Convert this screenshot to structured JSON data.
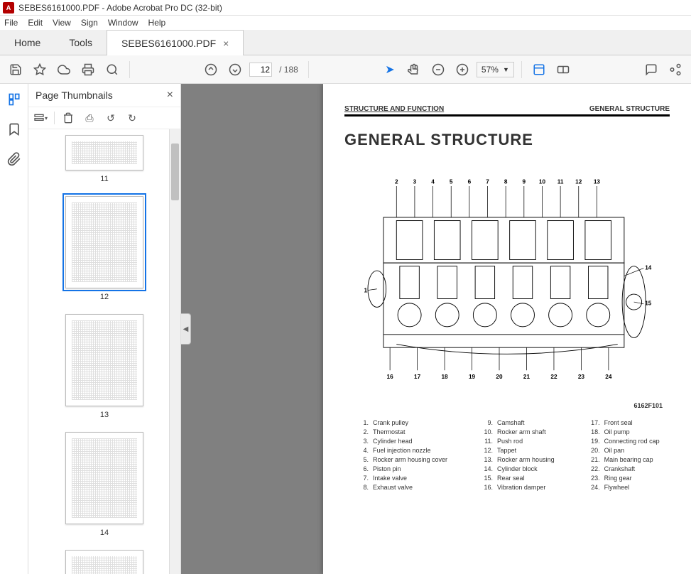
{
  "window": {
    "title": "SEBES6161000.PDF - Adobe Acrobat Pro DC (32-bit)"
  },
  "menu": {
    "file": "File",
    "edit": "Edit",
    "view": "View",
    "sign": "Sign",
    "window": "Window",
    "help": "Help"
  },
  "tabs": {
    "home": "Home",
    "tools": "Tools",
    "doc": "SEBES6161000.PDF"
  },
  "toolbar": {
    "page_current": "12",
    "page_total": "/ 188",
    "zoom": "57%"
  },
  "thumbnails": {
    "title": "Page Thumbnails",
    "items": [
      {
        "num": "11",
        "selected": false
      },
      {
        "num": "12",
        "selected": true
      },
      {
        "num": "13",
        "selected": false
      },
      {
        "num": "14",
        "selected": false
      },
      {
        "num": "",
        "selected": false
      }
    ]
  },
  "document": {
    "header_left": "STRUCTURE AND FUNCTION",
    "header_right": "GENERAL STRUCTURE",
    "title": "GENERAL STRUCTURE",
    "figure_no": "6162F101",
    "callouts_top": [
      "2",
      "3",
      "4",
      "5",
      "6",
      "7",
      "8",
      "9",
      "10",
      "11",
      "12",
      "13"
    ],
    "callouts_left": [
      "1"
    ],
    "callouts_right": [
      "14",
      "15"
    ],
    "callouts_bottom": [
      "16",
      "17",
      "18",
      "19",
      "20",
      "21",
      "22",
      "23",
      "24"
    ],
    "parts": [
      {
        "n": "1.",
        "t": "Crank pulley"
      },
      {
        "n": "2.",
        "t": "Thermostat"
      },
      {
        "n": "3.",
        "t": "Cylinder head"
      },
      {
        "n": "4.",
        "t": "Fuel injection nozzle"
      },
      {
        "n": "5.",
        "t": "Rocker arm housing cover"
      },
      {
        "n": "6.",
        "t": "Piston pin"
      },
      {
        "n": "7.",
        "t": "Intake valve"
      },
      {
        "n": "8.",
        "t": "Exhaust valve"
      },
      {
        "n": "9.",
        "t": "Camshaft"
      },
      {
        "n": "10.",
        "t": "Rocker arm shaft"
      },
      {
        "n": "11.",
        "t": "Push rod"
      },
      {
        "n": "12.",
        "t": "Tappet"
      },
      {
        "n": "13.",
        "t": "Rocker arm housing"
      },
      {
        "n": "14.",
        "t": "Cylinder block"
      },
      {
        "n": "15.",
        "t": "Rear seal"
      },
      {
        "n": "16.",
        "t": "Vibration damper"
      },
      {
        "n": "17.",
        "t": "Front seal"
      },
      {
        "n": "18.",
        "t": "Oil pump"
      },
      {
        "n": "19.",
        "t": "Connecting rod cap"
      },
      {
        "n": "20.",
        "t": "Oil pan"
      },
      {
        "n": "21.",
        "t": "Main bearing cap"
      },
      {
        "n": "22.",
        "t": "Crankshaft"
      },
      {
        "n": "23.",
        "t": "Ring gear"
      },
      {
        "n": "24.",
        "t": "Flywheel"
      }
    ]
  },
  "colors": {
    "accent": "#1473e6",
    "toolbar_bg": "#f7f7f7",
    "tabbar_bg": "#f0f0f0",
    "page_bg": "#808080"
  }
}
